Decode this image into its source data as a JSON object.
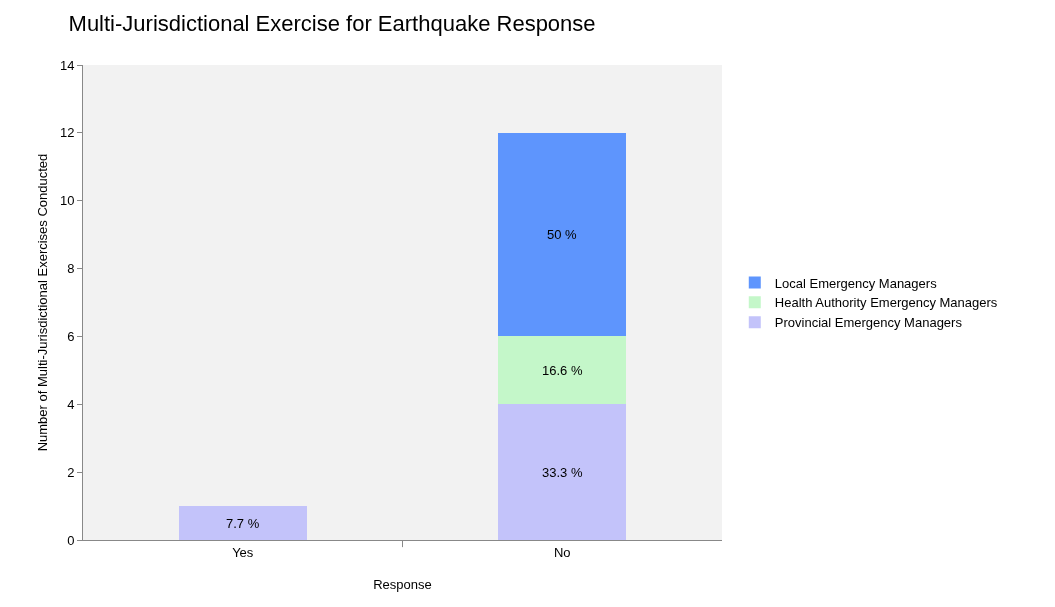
{
  "chart_data": {
    "type": "bar",
    "title": "Multi-Jurisdictional Exercise for Earthquake Response",
    "xlabel": "Response",
    "ylabel": "Number of Multi-Jurisdictional Exercises Conducted",
    "categories": [
      "Yes",
      "No"
    ],
    "stacked": true,
    "series": [
      {
        "name": "Provincial Emergency Managers",
        "color": "#c3c3fa",
        "values": [
          1,
          4
        ]
      },
      {
        "name": "Health Authority Emergency Managers",
        "color": "#c4f7c9",
        "values": [
          null,
          2
        ]
      },
      {
        "name": "Local Emergency Managers",
        "color": "#5e95fd",
        "values": [
          null,
          6
        ]
      }
    ],
    "annotations": [
      "7.7 %",
      "33.3 %",
      "16.6 %",
      "50 %"
    ],
    "ylim": [
      0,
      14
    ],
    "yticks": [
      0,
      2,
      4,
      6,
      8,
      10,
      12,
      14
    ],
    "grid": false,
    "legend": "right"
  }
}
